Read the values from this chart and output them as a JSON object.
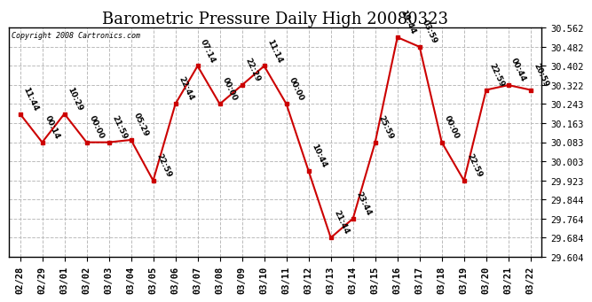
{
  "title": "Barometric Pressure Daily High 20080323",
  "copyright": "Copyright 2008 Cartronics.com",
  "dates": [
    "02/28",
    "02/29",
    "03/01",
    "03/02",
    "03/03",
    "03/04",
    "03/05",
    "03/06",
    "03/07",
    "03/08",
    "03/09",
    "03/10",
    "03/11",
    "03/12",
    "03/13",
    "03/14",
    "03/15",
    "03/16",
    "03/17",
    "03/18",
    "03/19",
    "03/20",
    "03/21",
    "03/22"
  ],
  "dates_display": [
    "02/28\n0",
    "02/29\n0",
    "03/01\n0",
    "03/02\n0",
    "03/03\n0",
    "03/04\n0",
    "03/05\n0",
    "03/06\n0",
    "03/07\n0",
    "03/08\n0",
    "03/09\n0",
    "03/10\n0",
    "03/11\n0",
    "03/12\n0",
    "03/13\n0",
    "03/14\n0",
    "03/15\n0",
    "03/16\n0",
    "03/17\n0",
    "03/18\n0",
    "03/19\n0",
    "03/20\n0",
    "03/21\n0",
    "03/22\n0"
  ],
  "values": [
    30.202,
    30.083,
    30.202,
    30.083,
    30.083,
    30.093,
    29.923,
    30.243,
    30.402,
    30.243,
    30.322,
    30.402,
    30.243,
    29.963,
    29.684,
    29.764,
    30.083,
    30.522,
    30.482,
    30.083,
    29.923,
    30.302,
    30.322,
    30.302
  ],
  "labels": [
    "11:44",
    "00:14",
    "10:29",
    "00:00",
    "21:59",
    "05:29",
    "22:59",
    "22:44",
    "07:14",
    "00:00",
    "22:29",
    "11:14",
    "00:00",
    "10:44",
    "21:44",
    "23:44",
    "25:59",
    "19:44",
    "03:59",
    "00:00",
    "22:59",
    "22:59",
    "00:44",
    "20:59"
  ],
  "line_color": "#cc0000",
  "marker_color": "#cc0000",
  "background_color": "#ffffff",
  "grid_color": "#bbbbbb",
  "title_fontsize": 13,
  "label_fontsize": 6.5,
  "tick_fontsize": 7.5,
  "ylim": [
    29.604,
    30.562
  ],
  "yticks": [
    29.604,
    29.684,
    29.764,
    29.844,
    29.923,
    30.003,
    30.083,
    30.163,
    30.243,
    30.322,
    30.402,
    30.482,
    30.562
  ]
}
